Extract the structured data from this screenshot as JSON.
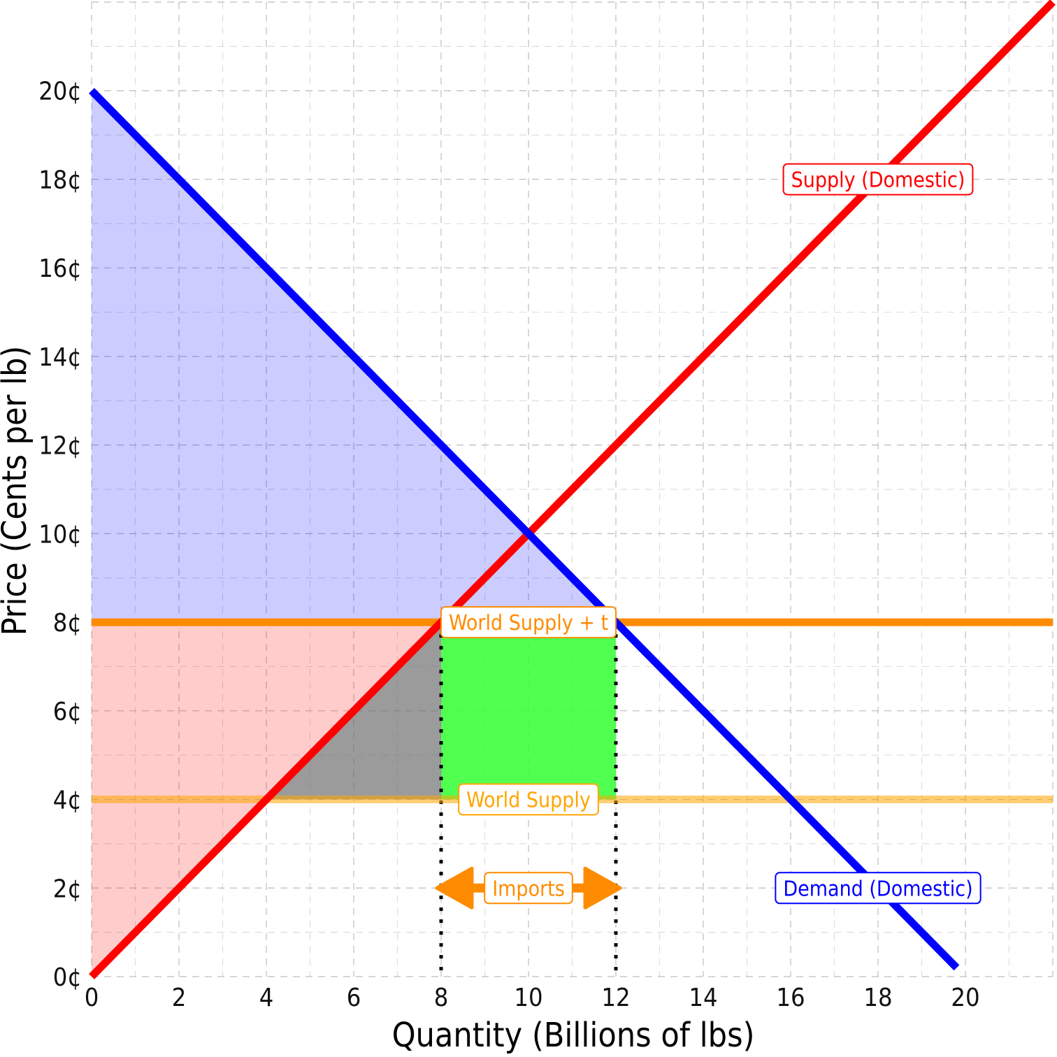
{
  "chart_data": {
    "type": "line",
    "title": "",
    "xlabel": "Quantity (Billions of lbs)",
    "ylabel": "Price (Cents per lb)",
    "xlim": [
      0,
      22
    ],
    "ylim": [
      0,
      22
    ],
    "x_ticks": [
      0,
      2,
      4,
      6,
      8,
      10,
      12,
      14,
      16,
      18,
      20
    ],
    "x_tick_labels": [
      "0",
      "2",
      "4",
      "6",
      "8",
      "10",
      "12",
      "14",
      "16",
      "18",
      "20"
    ],
    "y_ticks": [
      0,
      2,
      4,
      6,
      8,
      10,
      12,
      14,
      16,
      18,
      20
    ],
    "y_tick_labels": [
      "0¢",
      "2¢",
      "4¢",
      "6¢",
      "8¢",
      "10¢",
      "12¢",
      "14¢",
      "16¢",
      "18¢",
      "20¢"
    ],
    "grid": true,
    "series": [
      {
        "name": "Supply (Domestic)",
        "color": "#ff0000",
        "points": [
          [
            0,
            0
          ],
          [
            22,
            22
          ]
        ],
        "label_at": [
          18,
          18
        ]
      },
      {
        "name": "Demand (Domestic)",
        "color": "#0000ff",
        "points": [
          [
            0,
            20
          ],
          [
            19.8,
            0.2
          ]
        ],
        "label_at": [
          18,
          2
        ]
      },
      {
        "name": "World Supply + t",
        "color": "#ff8c00",
        "points": [
          [
            0,
            8
          ],
          [
            22,
            8
          ]
        ],
        "label_at": [
          10,
          8
        ]
      },
      {
        "name": "World Supply",
        "color": "#ffa500",
        "points": [
          [
            0,
            4
          ],
          [
            22,
            4
          ]
        ],
        "label_at": [
          10,
          4
        ]
      }
    ],
    "regions": [
      {
        "name": "consumer surplus",
        "color": "#0000ff",
        "opacity": 0.2,
        "polygon": [
          [
            0,
            20
          ],
          [
            12,
            8
          ],
          [
            0,
            8
          ]
        ]
      },
      {
        "name": "producer surplus",
        "color": "#ff0000",
        "opacity": 0.2,
        "polygon": [
          [
            0,
            8
          ],
          [
            8,
            8
          ],
          [
            0,
            0
          ]
        ]
      },
      {
        "name": "deadweight loss",
        "color": "#666666",
        "opacity": 0.65,
        "polygon": [
          [
            4,
            4
          ],
          [
            8,
            8
          ],
          [
            8,
            4
          ]
        ]
      },
      {
        "name": "tariff revenue",
        "color": "#33ff33",
        "opacity": 0.85,
        "polygon": [
          [
            8,
            4
          ],
          [
            12,
            4
          ],
          [
            12,
            8
          ],
          [
            8,
            8
          ]
        ]
      }
    ],
    "vlines": [
      8,
      12
    ],
    "annotation": {
      "text": "Imports",
      "from": 8,
      "to": 12,
      "y": 2,
      "color": "#ff8c00"
    }
  }
}
